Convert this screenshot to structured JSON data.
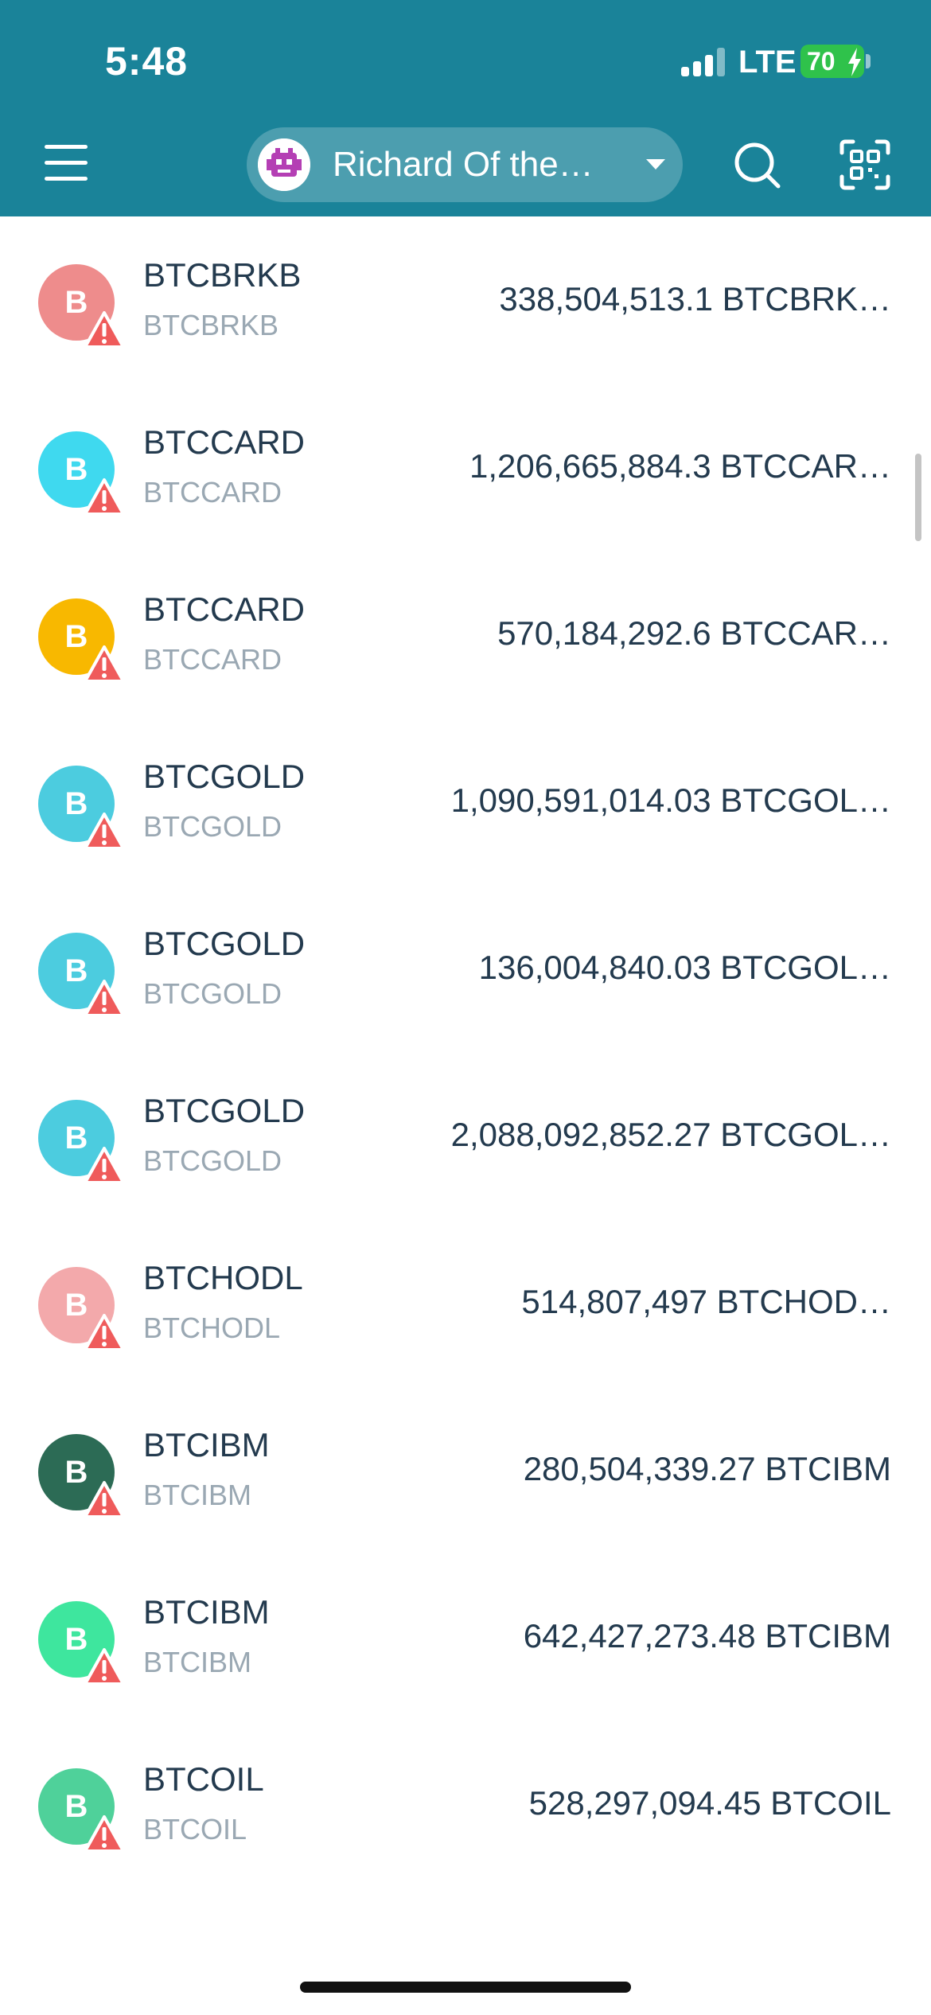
{
  "status_bar": {
    "time": "5:48",
    "network": "LTE",
    "battery": "70"
  },
  "header": {
    "account_name": "Richard Of the…"
  },
  "colors": {
    "header_bg": "#1a8399",
    "warning": "#ef5b5b"
  },
  "tokens": [
    {
      "name": "BTCBRKB",
      "symbol": "BTCBRKB",
      "balance": "338,504,513.1 BTCBRK…",
      "initial": "B",
      "color": "#ee8c8c"
    },
    {
      "name": "BTCCARD",
      "symbol": "BTCCARD",
      "balance": "1,206,665,884.3 BTCCAR…",
      "initial": "B",
      "color": "#3fd9ef"
    },
    {
      "name": "BTCCARD",
      "symbol": "BTCCARD",
      "balance": "570,184,292.6 BTCCAR…",
      "initial": "B",
      "color": "#f8b800"
    },
    {
      "name": "BTCGOLD",
      "symbol": "BTCGOLD",
      "balance": "1,090,591,014.03 BTCGOL…",
      "initial": "B",
      "color": "#4cccdf"
    },
    {
      "name": "BTCGOLD",
      "symbol": "BTCGOLD",
      "balance": "136,004,840.03 BTCGOL…",
      "initial": "B",
      "color": "#4cccdf"
    },
    {
      "name": "BTCGOLD",
      "symbol": "BTCGOLD",
      "balance": "2,088,092,852.27 BTCGOL…",
      "initial": "B",
      "color": "#4cccdf"
    },
    {
      "name": "BTCHODL",
      "symbol": "BTCHODL",
      "balance": "514,807,497 BTCHOD…",
      "initial": "B",
      "color": "#f3a9ab"
    },
    {
      "name": "BTCIBM",
      "symbol": "BTCIBM",
      "balance": "280,504,339.27 BTCIBM",
      "initial": "B",
      "color": "#2c6b55"
    },
    {
      "name": "BTCIBM",
      "symbol": "BTCIBM",
      "balance": "642,427,273.48 BTCIBM",
      "initial": "B",
      "color": "#3ee69e"
    },
    {
      "name": "BTCOIL",
      "symbol": "BTCOIL",
      "balance": "528,297,094.45 BTCOIL",
      "initial": "B",
      "color": "#4fd19a"
    }
  ]
}
